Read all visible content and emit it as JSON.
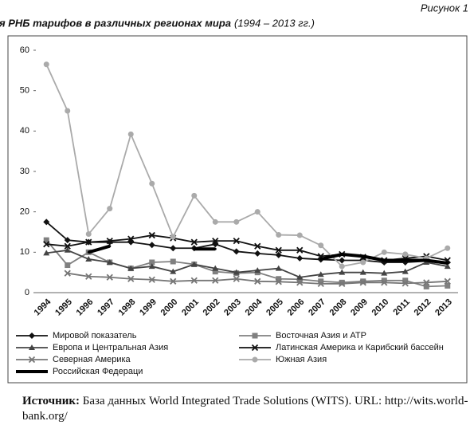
{
  "figure_label": "Рисунок 1",
  "chart_data": {
    "type": "line",
    "title": "Значения РНБ тарифов в различных регионах мира",
    "subtitle": "(1994 – 2013 гг.)",
    "categories": [
      "1994",
      "1995",
      "1996",
      "1997",
      "1998",
      "1999",
      "2000",
      "2001",
      "2002",
      "2003",
      "2004",
      "2005",
      "2006",
      "2007",
      "2008",
      "2009",
      "2010",
      "2011",
      "2012",
      "2013"
    ],
    "ylim": [
      0,
      60
    ],
    "yticks": [
      0,
      10,
      20,
      30,
      40,
      50,
      60
    ],
    "grid": false,
    "series": [
      {
        "name": "Мировой показатель",
        "color": "#111111",
        "marker": "diamond",
        "values": [
          17.5,
          13,
          12.5,
          12.5,
          12.5,
          11.8,
          11,
          11,
          12,
          10.2,
          9.7,
          9.3,
          8.5,
          8.2,
          8,
          8,
          7.5,
          7.5,
          7.8,
          7.5
        ]
      },
      {
        "name": "Восточная Азия и АТР",
        "color": "#808080",
        "marker": "square",
        "values": [
          13,
          6.8,
          10,
          7.5,
          6,
          7.5,
          7.7,
          7,
          5.2,
          4.8,
          5,
          3.4,
          3.3,
          2.8,
          2.5,
          2.8,
          3,
          3,
          1.5,
          1.7
        ]
      },
      {
        "name": "Европа и Центральная Азия",
        "color": "#444444",
        "marker": "triangle",
        "values": [
          9.8,
          10.5,
          8.3,
          7.5,
          6,
          6.5,
          5.2,
          7,
          6,
          5,
          5.5,
          6,
          3.8,
          4.5,
          5,
          5,
          4.8,
          5.2,
          7.5,
          6.5
        ]
      },
      {
        "name": "Латинская Америка и Карибский бассейн",
        "color": "#111111",
        "marker": "x",
        "values": [
          12,
          11.5,
          12.5,
          12.8,
          13.3,
          14.2,
          13.5,
          12.5,
          12.8,
          12.8,
          11.5,
          10.5,
          10.5,
          9,
          9.5,
          8.8,
          8,
          8.5,
          9,
          8
        ]
      },
      {
        "name": "Северная Америка",
        "color": "#777777",
        "marker": "x",
        "values": [
          null,
          4.8,
          4,
          3.8,
          3.4,
          3.2,
          2.8,
          3,
          3,
          3.4,
          2.8,
          2.7,
          2.5,
          2.2,
          2.2,
          2.5,
          2.5,
          2.3,
          2.5,
          2.8
        ]
      },
      {
        "name": "Южная Азия",
        "color": "#aaaaaa",
        "marker": "circle",
        "values": [
          56.5,
          45,
          14.5,
          20.8,
          39.2,
          27,
          13.8,
          24,
          17.5,
          17.5,
          20,
          14.3,
          14.2,
          11.7,
          6.5,
          7.5,
          10,
          9.5,
          8.5,
          11
        ]
      },
      {
        "name": "Российская Федераци",
        "color": "#000000",
        "marker": "thick",
        "values": [
          null,
          null,
          10,
          11.5,
          null,
          null,
          null,
          10.8,
          10.8,
          null,
          null,
          null,
          null,
          8.3,
          9.5,
          9,
          8,
          8,
          8,
          7.3
        ]
      }
    ]
  },
  "source_label": "Источник:",
  "source_text": "База данных World Integrated Trade Solutions (WITS). URL: http://wits.world-bank.org/"
}
